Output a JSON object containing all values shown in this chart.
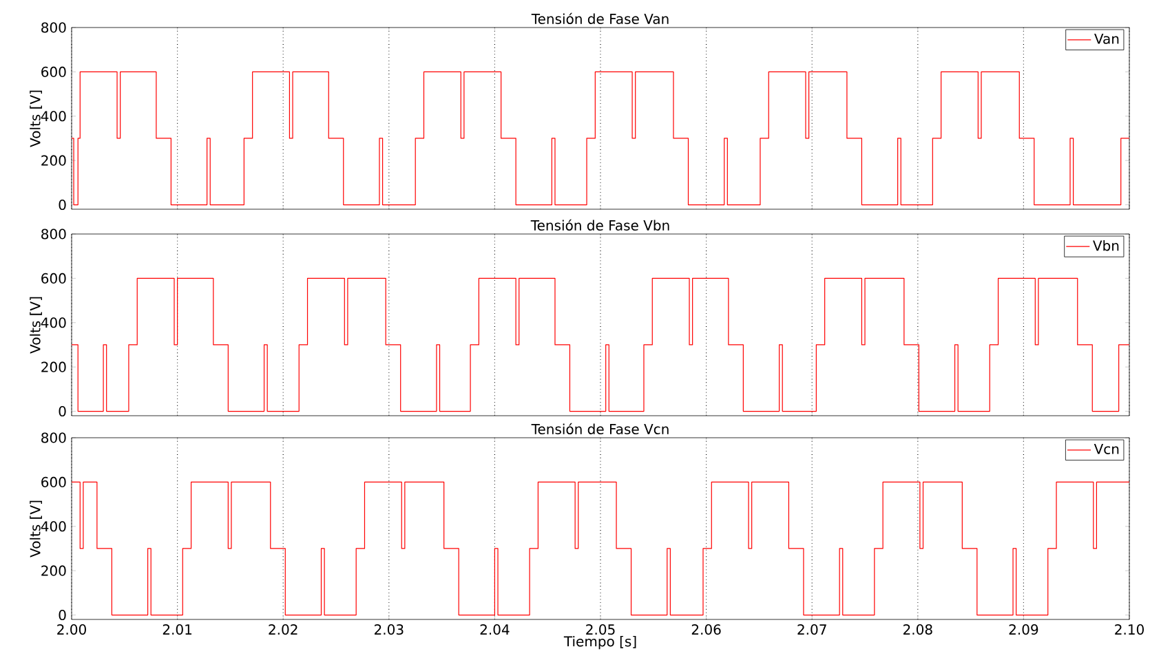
{
  "chart_data": [
    {
      "type": "step",
      "title": "Tensión de Fase Van",
      "ylabel": "Volts [V]",
      "x": [
        2.0,
        2.0002,
        2.0006,
        2.0008,
        2.0043,
        2.0046,
        2.008,
        2.0094,
        2.0128,
        2.0131,
        2.0163,
        2.0171,
        2.0206,
        2.0209,
        2.0243,
        2.0257,
        2.0291,
        2.0294,
        2.0325,
        2.0333,
        2.0368,
        2.0371,
        2.0406,
        2.042,
        2.0454,
        2.0457,
        2.0487,
        2.0495,
        2.053,
        2.0533,
        2.0569,
        2.0583,
        2.0617,
        2.062,
        2.0651,
        2.0659,
        2.0694,
        2.0697,
        2.0733,
        2.0747,
        2.0781,
        2.0784,
        2.0814,
        2.0822,
        2.0857,
        2.086,
        2.0896,
        2.091,
        2.0944,
        2.0947,
        2.0992,
        2.1
      ],
      "series": [
        {
          "name": "Van",
          "color": "#ff0000",
          "values": [
            300,
            0,
            300,
            600,
            300,
            600,
            300,
            0,
            300,
            0,
            300,
            600,
            300,
            600,
            300,
            0,
            300,
            0,
            300,
            600,
            300,
            600,
            300,
            0,
            300,
            0,
            300,
            600,
            300,
            600,
            300,
            0,
            300,
            0,
            300,
            600,
            300,
            600,
            300,
            0,
            300,
            0,
            300,
            600,
            300,
            600,
            300,
            0,
            300,
            0,
            300,
            300
          ]
        }
      ],
      "xlim": [
        2.0,
        2.1
      ],
      "ylim": [
        -20,
        800
      ],
      "yticks": [
        0,
        200,
        400,
        600,
        800
      ],
      "xticks": [
        2.0,
        2.01,
        2.02,
        2.03,
        2.04,
        2.05,
        2.06,
        2.07,
        2.08,
        2.09,
        2.1
      ],
      "tick_labels": "y",
      "grid": "x",
      "legend": "top right"
    },
    {
      "type": "step",
      "title": "Tensión de Fase Vbn",
      "ylabel": "Volts [V]",
      "x": [
        2.0,
        2.0006,
        2.003,
        2.0033,
        2.0054,
        2.0062,
        2.0097,
        2.01,
        2.0134,
        2.0148,
        2.0182,
        2.0185,
        2.0215,
        2.0223,
        2.0258,
        2.0261,
        2.0297,
        2.0311,
        2.0345,
        2.0348,
        2.0377,
        2.0385,
        2.042,
        2.0423,
        2.0457,
        2.0471,
        2.0505,
        2.0508,
        2.0541,
        2.0549,
        2.0584,
        2.0587,
        2.0621,
        2.0635,
        2.0669,
        2.0672,
        2.0704,
        2.0712,
        2.0747,
        2.075,
        2.0787,
        2.0801,
        2.0835,
        2.0838,
        2.0868,
        2.0876,
        2.0911,
        2.0914,
        2.0951,
        2.0965,
        2.099,
        2.1
      ],
      "series": [
        {
          "name": "Vbn",
          "color": "#ff0000",
          "values": [
            300,
            0,
            300,
            0,
            300,
            600,
            300,
            600,
            300,
            0,
            300,
            0,
            300,
            600,
            300,
            600,
            300,
            0,
            300,
            0,
            300,
            600,
            300,
            600,
            300,
            0,
            300,
            0,
            300,
            600,
            300,
            600,
            300,
            0,
            300,
            0,
            300,
            600,
            300,
            600,
            300,
            0,
            300,
            0,
            300,
            600,
            300,
            600,
            300,
            0,
            300,
            300
          ]
        }
      ],
      "xlim": [
        2.0,
        2.1
      ],
      "ylim": [
        -20,
        800
      ],
      "yticks": [
        0,
        200,
        400,
        600,
        800
      ],
      "xticks": [
        2.0,
        2.01,
        2.02,
        2.03,
        2.04,
        2.05,
        2.06,
        2.07,
        2.08,
        2.09,
        2.1
      ],
      "tick_labels": "y",
      "grid": "x",
      "legend": "top right"
    },
    {
      "type": "step",
      "title": "Tensión de Fase Vcn",
      "ylabel": "Volts [V]",
      "xlabel": "Tiempo [s]",
      "x": [
        2.0,
        2.0008,
        2.0011,
        2.0024,
        2.0038,
        2.0072,
        2.0075,
        2.0105,
        2.0113,
        2.0148,
        2.0151,
        2.0188,
        2.0202,
        2.0236,
        2.0239,
        2.0269,
        2.0277,
        2.0312,
        2.0315,
        2.0352,
        2.0366,
        2.04,
        2.0403,
        2.0433,
        2.0441,
        2.0476,
        2.0479,
        2.0515,
        2.0529,
        2.0563,
        2.0566,
        2.0597,
        2.0605,
        2.064,
        2.0643,
        2.0678,
        2.0692,
        2.0726,
        2.0729,
        2.0759,
        2.0767,
        2.0802,
        2.0805,
        2.0842,
        2.0856,
        2.089,
        2.0893,
        2.0923,
        2.0931,
        2.0966,
        2.0969,
        2.1
      ],
      "series": [
        {
          "name": "Vcn",
          "color": "#ff0000",
          "values": [
            600,
            300,
            600,
            300,
            0,
            300,
            0,
            300,
            600,
            300,
            600,
            300,
            0,
            300,
            0,
            300,
            600,
            300,
            600,
            300,
            0,
            300,
            0,
            300,
            600,
            300,
            600,
            300,
            0,
            300,
            0,
            300,
            600,
            300,
            600,
            300,
            0,
            300,
            0,
            300,
            600,
            300,
            600,
            300,
            0,
            300,
            0,
            300,
            600,
            300,
            600,
            600
          ]
        }
      ],
      "xlim": [
        2.0,
        2.1
      ],
      "ylim": [
        -20,
        800
      ],
      "yticks": [
        0,
        200,
        400,
        600,
        800
      ],
      "xticks": [
        {
          "value": 2.0,
          "label": "2.00"
        },
        {
          "value": 2.01,
          "label": "2.01"
        },
        {
          "value": 2.02,
          "label": "2.02"
        },
        {
          "value": 2.03,
          "label": "2.03"
        },
        {
          "value": 2.04,
          "label": "2.04"
        },
        {
          "value": 2.05,
          "label": "2.05"
        },
        {
          "value": 2.06,
          "label": "2.06"
        },
        {
          "value": 2.07,
          "label": "2.07"
        },
        {
          "value": 2.08,
          "label": "2.08"
        },
        {
          "value": 2.09,
          "label": "2.09"
        },
        {
          "value": 2.1,
          "label": "2.10"
        }
      ],
      "grid": "x",
      "legend": "top right"
    }
  ]
}
